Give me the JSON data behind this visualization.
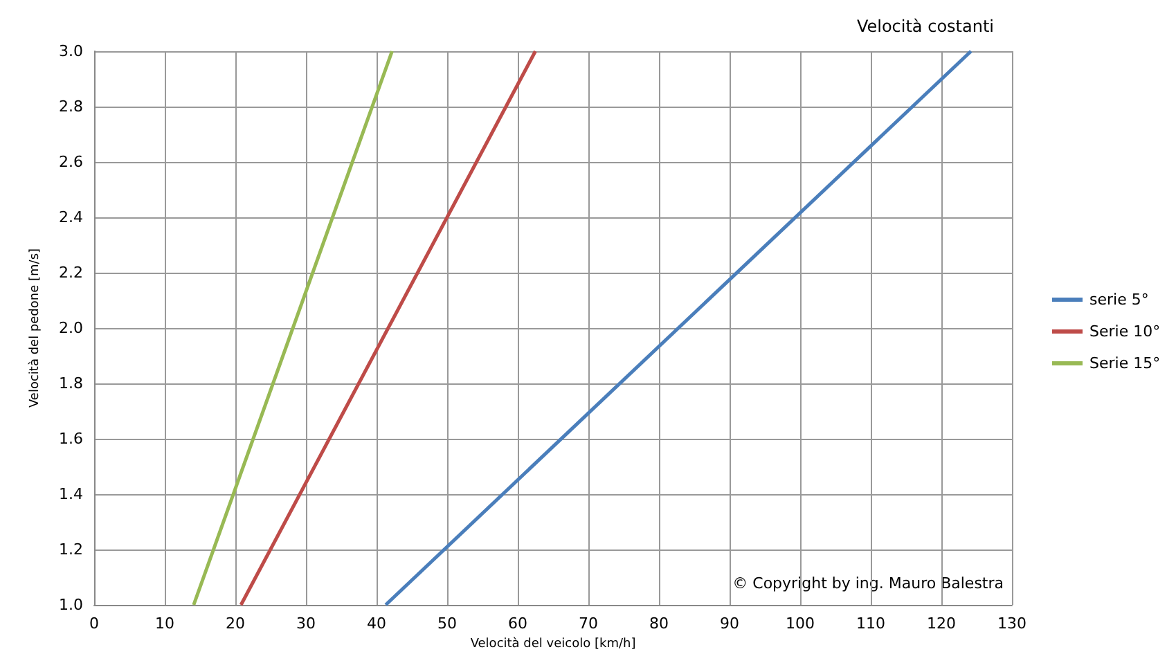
{
  "chart_data": {
    "type": "line",
    "title": "Velocità costanti",
    "xlabel": "Velocità del veicolo [km/h]",
    "ylabel": "Velocità del pedone [m/s]",
    "series": [
      {
        "name": "serie 5°",
        "color": "#4a7ebb",
        "x": [
          41.3,
          124.2
        ],
        "values": [
          1.0,
          3.0
        ]
      },
      {
        "name": "Serie 10°",
        "color": "#be4b48",
        "x": [
          20.8,
          62.5
        ],
        "values": [
          1.0,
          3.0
        ]
      },
      {
        "name": "Serie 15°",
        "color": "#98b954",
        "x": [
          14.1,
          42.2
        ],
        "values": [
          1.0,
          3.0
        ]
      }
    ],
    "xlim": [
      0,
      130
    ],
    "xticks": [
      0,
      10,
      20,
      30,
      40,
      50,
      60,
      70,
      80,
      90,
      100,
      110,
      120,
      130
    ],
    "ylim": [
      1.0,
      3.0
    ],
    "yticks": [
      {
        "value": 1.0,
        "label": "1.0"
      },
      {
        "value": 1.2,
        "label": "1.2"
      },
      {
        "value": 1.4,
        "label": "1.4"
      },
      {
        "value": 1.6,
        "label": "1.6"
      },
      {
        "value": 1.8,
        "label": "1.8"
      },
      {
        "value": 2.0,
        "label": "2.0"
      },
      {
        "value": 2.2,
        "label": "2.2"
      },
      {
        "value": 2.4,
        "label": "2.4"
      },
      {
        "value": 2.6,
        "label": "2.6"
      },
      {
        "value": 2.8,
        "label": "2.8"
      },
      {
        "value": 3.0,
        "label": "3.0"
      }
    ],
    "grid": true,
    "legend": "right",
    "marker": "none",
    "line_style": "solid",
    "annotations": [
      "© Copyright by ing. Mauro Balestra"
    ]
  }
}
